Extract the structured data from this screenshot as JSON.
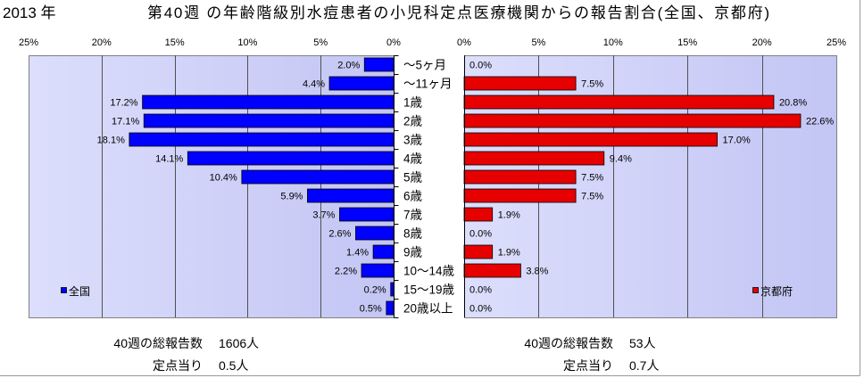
{
  "chart_data": {
    "type": "bar",
    "orientation": "horizontal",
    "layout": "back-to-back",
    "year_label": "2013 年",
    "title": "第40週 の年齢階級別水痘患者の小児科定点医療機関からの報告割合(全国、京都府)",
    "unit": "%",
    "xlim": [
      0,
      25
    ],
    "x_ticks": [
      0,
      5,
      10,
      15,
      20,
      25
    ],
    "grid": true,
    "categories": [
      "～5ヶ月",
      "～11ヶ月",
      "1歳",
      "2歳",
      "3歳",
      "4歳",
      "5歳",
      "6歳",
      "7歳",
      "8歳",
      "9歳",
      "10～14歳",
      "15～19歳",
      "20歳以上"
    ],
    "series": [
      {
        "name": "全国",
        "side": "left",
        "legend": "bottom-left",
        "color": "#0000ff",
        "values": [
          2.0,
          4.4,
          17.2,
          17.1,
          18.1,
          14.1,
          10.4,
          5.9,
          3.7,
          2.6,
          1.4,
          2.2,
          0.2,
          0.5
        ]
      },
      {
        "name": "京都府",
        "side": "right",
        "legend": "bottom-right",
        "color": "#e60000",
        "values": [
          0.0,
          7.5,
          20.8,
          22.6,
          17.0,
          9.4,
          7.5,
          7.5,
          1.9,
          0.0,
          1.9,
          3.8,
          0.0,
          0.0
        ]
      }
    ]
  },
  "summary": {
    "national": {
      "total_label": "40週の総報告数",
      "total_value": "1606人",
      "per_site_label": "定点当り",
      "per_site_value": "0.5人"
    },
    "kyoto": {
      "total_label": "40週の総報告数",
      "total_value": "53人",
      "per_site_label": "定点当り",
      "per_site_value": "0.7人"
    }
  },
  "colors": {
    "plot_bg_from": "#dcdefc",
    "plot_bg_to": "#c3c5f4",
    "plot_border": "#808080",
    "gridline": "#505050",
    "axis_line": "#000000",
    "bar_outline": "#000000"
  }
}
